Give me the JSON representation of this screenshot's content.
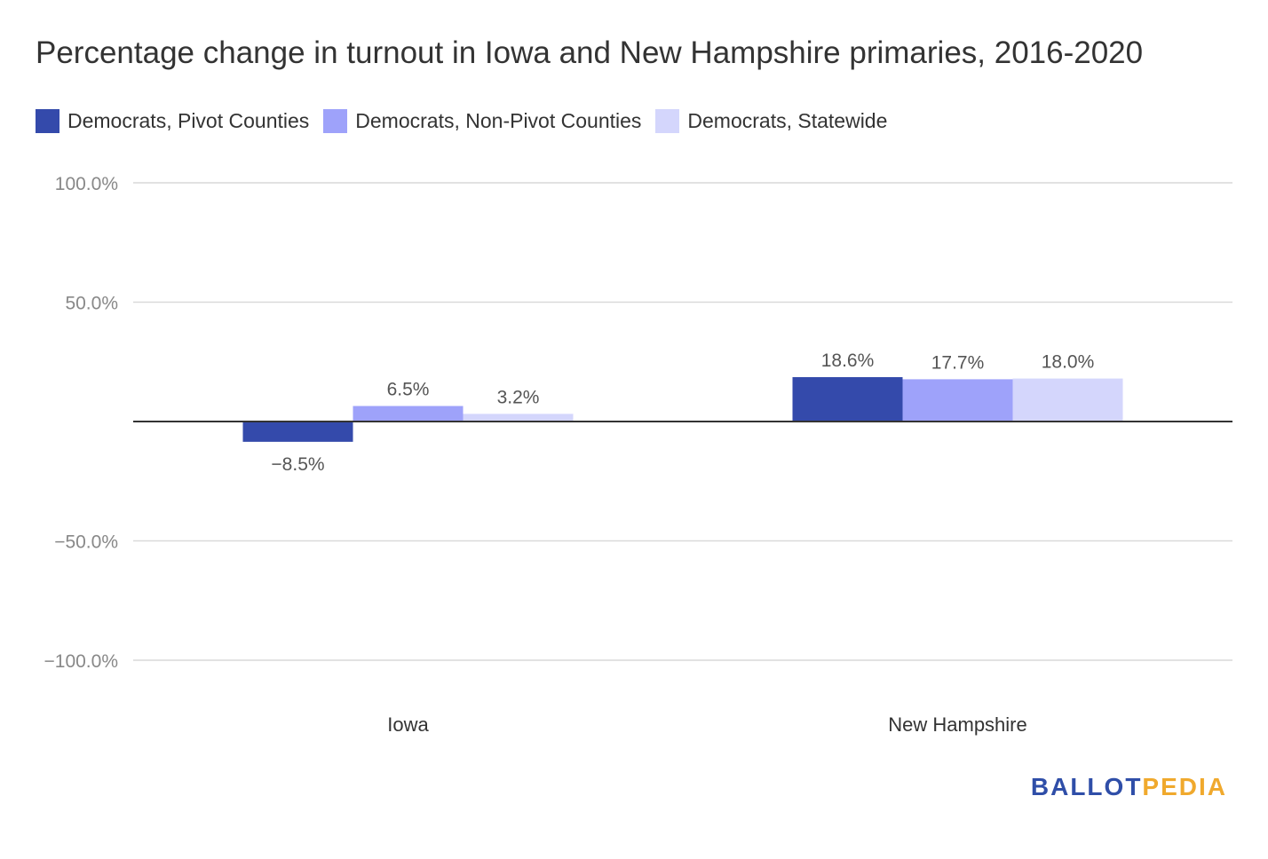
{
  "chart_data": {
    "type": "bar",
    "title": "Percentage change in turnout in Iowa and New Hampshire primaries, 2016-2020",
    "categories": [
      "Iowa",
      "New Hampshire"
    ],
    "series": [
      {
        "name": "Democrats, Pivot Counties",
        "color": "#344aab",
        "values": [
          -8.5,
          18.6
        ],
        "labels": [
          "−8.5%",
          "18.6%"
        ]
      },
      {
        "name": "Democrats, Non-Pivot Counties",
        "color": "#9ea2fa",
        "values": [
          6.5,
          17.7
        ],
        "labels": [
          "6.5%",
          "17.7%"
        ]
      },
      {
        "name": "Democrats, Statewide",
        "color": "#d4d6fc",
        "values": [
          3.2,
          18.0
        ],
        "labels": [
          "3.2%",
          "18.0%"
        ]
      }
    ],
    "ylim": [
      -100,
      100
    ],
    "yticks": [
      {
        "value": 100,
        "label": "100.0%"
      },
      {
        "value": 50,
        "label": "50.0%"
      },
      {
        "value": -50,
        "label": "−50.0%"
      },
      {
        "value": -100,
        "label": "−100.0%"
      }
    ],
    "grid": true,
    "legend_position": "top-left"
  },
  "logo": {
    "part1": "BALLOT",
    "part2": "PEDIA"
  }
}
